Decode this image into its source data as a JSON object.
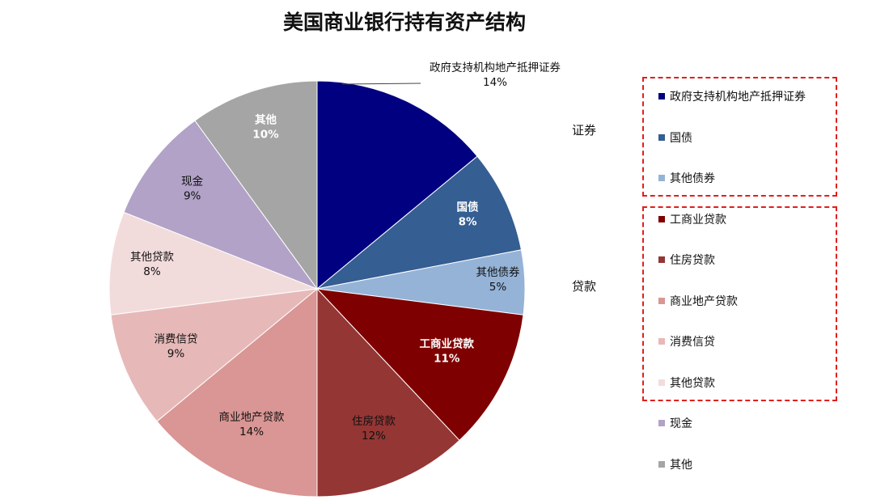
{
  "chart_data": {
    "type": "pie",
    "title": "美国商业银行持有资产结构",
    "slices": [
      {
        "label": "政府支持机构地产抵押证券",
        "value": 14,
        "value_label": "14%",
        "color": "#000080"
      },
      {
        "label": "国债",
        "value": 8,
        "value_label": "8%",
        "color": "#355e92"
      },
      {
        "label": "其他债券",
        "value": 5,
        "value_label": "5%",
        "color": "#95b3d7"
      },
      {
        "label": "工商业贷款",
        "value": 11,
        "value_label": "11%",
        "color": "#7f0000"
      },
      {
        "label": "住房贷款",
        "value": 12,
        "value_label": "12%",
        "color": "#943634"
      },
      {
        "label": "商业地产贷款",
        "value": 14,
        "value_label": "14%",
        "color": "#d99694"
      },
      {
        "label": "消费信贷",
        "value": 9,
        "value_label": "9%",
        "color": "#e6b9b8"
      },
      {
        "label": "其他贷款",
        "value": 8,
        "value_label": "8%",
        "color": "#f2dcdb"
      },
      {
        "label": "现金",
        "value": 9,
        "value_label": "9%",
        "color": "#b2a2c7"
      },
      {
        "label": "其他",
        "value": 10,
        "value_label": "10%",
        "color": "#a5a5a5"
      }
    ],
    "legend": {
      "placement": "right",
      "groups": [
        {
          "label": "证券",
          "items": [
            "政府支持机构地产抵押证券",
            "国债",
            "其他债券"
          ]
        },
        {
          "label": "贷款",
          "items": [
            "工商业贷款",
            "住房贷款",
            "商业地产贷款",
            "消费信贷",
            "其他贷款"
          ]
        }
      ],
      "ungrouped": [
        "现金",
        "其他"
      ]
    }
  }
}
